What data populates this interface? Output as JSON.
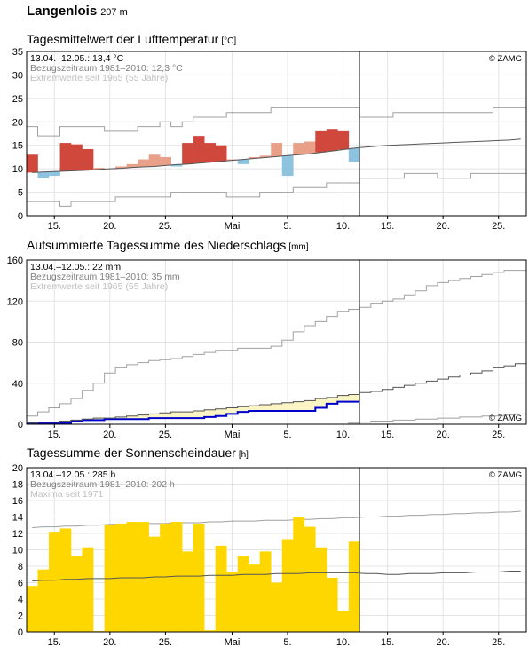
{
  "station": {
    "name": "Langenlois",
    "altitude": "207 m"
  },
  "colors": {
    "temp_warm": "#e8a089",
    "temp_warm_strong": "#d0483c",
    "temp_cold": "#8ec3df",
    "temp_cold_strong": "#3a86c4",
    "precip_deficit_fill": "#fbf5c6",
    "precip_actual": "#0000cc",
    "sunshine": "#ffd700",
    "envelope": "#a0a0a0",
    "mean_line": "#555555",
    "today_line": "#666666"
  },
  "x_axis": {
    "tick_labels": [
      "15.",
      "20.",
      "25.",
      "Mai",
      "5.",
      "10.",
      "15.",
      "20.",
      "25."
    ],
    "tick_days": [
      2,
      7,
      12,
      18,
      23,
      28,
      32,
      37,
      42
    ],
    "day_count": 45,
    "today_index": 29
  },
  "chart_data": [
    {
      "type": "bar",
      "title": "Tagesmittelwert der Lufttemperatur",
      "unit": "[°C]",
      "ylim": [
        0,
        35
      ],
      "yticks": [
        "0",
        "5",
        "10",
        "15",
        "20",
        "25",
        "30",
        "35"
      ],
      "info": [
        "13.04.–12.05.: 13,4 °C",
        "Bezugszeitraum 1981–2010: 12,3 °C",
        "Extremwerte seit 1965 (55 Jahre)"
      ],
      "credit": "© ZAMG",
      "reference_mean": [
        9.2,
        9.3,
        9.4,
        9.5,
        9.6,
        9.7,
        9.9,
        10.0,
        10.1,
        10.3,
        10.4,
        10.5,
        10.7,
        10.9,
        11.0,
        11.2,
        11.4,
        11.6,
        11.8,
        12.0,
        12.2,
        12.4,
        12.6,
        12.8,
        13.0,
        13.2,
        13.5,
        13.8,
        14.1,
        14.4,
        14.6,
        14.8,
        15.0,
        15.1,
        15.2,
        15.3,
        15.4,
        15.5,
        15.6,
        15.7,
        15.8,
        15.9,
        16.0,
        16.1,
        16.3
      ],
      "series": [
        {
          "values": [
            13.0,
            8.0,
            8.5,
            15.5,
            15.2,
            14.2,
            10.2,
            10.0,
            10.5,
            11.0,
            12.0,
            13.0,
            12.5,
            10.5,
            15.5,
            17.0,
            15.5,
            15.0,
            12.0,
            11.0,
            12.5,
            12.8,
            15.5,
            8.5,
            15.5,
            15.8,
            18.0,
            18.5,
            18.0,
            11.5
          ]
        }
      ],
      "extreme_max": [
        19,
        17,
        17,
        19,
        19,
        19,
        19,
        18,
        18,
        18,
        19,
        19,
        20,
        19,
        20,
        21,
        21,
        21,
        22,
        22,
        22,
        22,
        23,
        23,
        23,
        23,
        23,
        23,
        23,
        23,
        21,
        21,
        21,
        22,
        22,
        22,
        22,
        22,
        22,
        22,
        22,
        22,
        23,
        23,
        23
      ],
      "extreme_min": [
        3,
        3,
        3,
        2,
        3,
        3,
        3,
        3,
        4,
        4,
        4,
        4,
        4,
        5,
        5,
        5,
        5,
        5,
        4,
        4,
        4,
        5,
        5,
        5,
        6,
        6,
        6,
        7,
        7,
        7,
        8,
        8,
        8,
        8,
        9,
        9,
        9,
        8,
        8,
        8,
        9,
        9,
        9,
        9,
        9
      ]
    },
    {
      "type": "area",
      "title": "Aufsummierte Tagessumme des Niederschlags",
      "unit": "[mm]",
      "ylim": [
        0,
        160
      ],
      "yticks": [
        "0",
        "40",
        "80",
        "120",
        "160"
      ],
      "info": [
        "13.04.–12.05.: 22 mm",
        "Bezugszeitraum 1981–2010: 35 mm",
        "Extremwerte seit 1965 (55 Jahre)"
      ],
      "credit": "© ZAMG",
      "reference_cumulative": [
        1,
        2,
        2,
        3,
        4,
        5,
        6,
        6,
        7,
        8,
        9,
        10,
        11,
        12,
        12,
        13,
        14,
        15,
        16,
        17,
        18,
        19,
        20,
        21,
        22,
        23,
        25,
        26,
        28,
        29,
        31,
        32,
        34,
        36,
        38,
        40,
        42,
        44,
        46,
        48,
        50,
        52,
        55,
        57,
        59
      ],
      "series": [
        {
          "name": "actual",
          "values": [
            1,
            1,
            1,
            1,
            3,
            4,
            4,
            5,
            5,
            5,
            5,
            6,
            6,
            6,
            6,
            6,
            7,
            8,
            10,
            12,
            13,
            13,
            13,
            13,
            13,
            13,
            16,
            20,
            22,
            22
          ]
        }
      ],
      "extreme_max": [
        8,
        12,
        16,
        20,
        25,
        33,
        40,
        50,
        55,
        58,
        60,
        62,
        63,
        64,
        66,
        68,
        70,
        72,
        72,
        74,
        74,
        74,
        76,
        82,
        90,
        96,
        100,
        105,
        110,
        112,
        114,
        118,
        120,
        122,
        126,
        130,
        135,
        138,
        140,
        142,
        144,
        146,
        148,
        150,
        150
      ],
      "extreme_min": [
        0,
        0,
        0,
        0,
        0,
        0,
        0,
        0,
        0,
        0,
        0,
        0,
        0,
        0,
        0,
        0,
        0,
        0,
        0,
        0,
        0,
        0,
        0,
        0,
        0,
        0,
        0,
        0,
        0,
        1,
        2,
        3,
        3,
        4,
        4,
        5,
        5,
        6,
        6,
        7,
        7,
        8,
        8,
        9,
        10
      ]
    },
    {
      "type": "bar",
      "title": "Tagessumme der Sonnenscheindauer",
      "unit": "[h]",
      "ylim": [
        0,
        20
      ],
      "yticks": [
        "0",
        "2",
        "4",
        "6",
        "8",
        "10",
        "12",
        "14",
        "16",
        "18",
        "20"
      ],
      "info": [
        "13.04.–12.05.: 285 h",
        "Bezugszeitraum 1981–2010: 202 h",
        "Maxima seit 1971"
      ],
      "credit": "© ZAMG",
      "reference_mean": [
        6.2,
        6.3,
        6.3,
        6.4,
        6.4,
        6.5,
        6.5,
        6.5,
        6.6,
        6.6,
        6.6,
        6.7,
        6.7,
        6.8,
        6.8,
        6.8,
        6.9,
        6.9,
        6.9,
        7.0,
        7.0,
        7.0,
        7.1,
        7.1,
        7.1,
        7.2,
        7.2,
        7.2,
        7.2,
        7.2,
        7.1,
        7.1,
        7.0,
        7.0,
        7.1,
        7.1,
        7.1,
        7.2,
        7.2,
        7.2,
        7.3,
        7.3,
        7.3,
        7.4,
        7.4
      ],
      "series": [
        {
          "values": [
            5.6,
            7.6,
            12.2,
            12.6,
            9.2,
            10.3,
            0.1,
            13.0,
            13.2,
            13.4,
            13.4,
            11.6,
            13.2,
            13.4,
            9.8,
            13.2,
            0.2,
            10.5,
            7.3,
            9.2,
            8.2,
            9.8,
            6.0,
            11.3,
            14.0,
            12.8,
            10.3,
            6.6,
            2.6,
            11.0
          ]
        }
      ],
      "maxima": [
        12.7,
        12.8,
        12.8,
        12.9,
        12.9,
        13.0,
        13.0,
        13.1,
        13.1,
        13.1,
        13.2,
        13.2,
        13.2,
        13.3,
        13.3,
        13.3,
        13.4,
        13.4,
        13.5,
        13.5,
        13.5,
        13.6,
        13.6,
        13.6,
        13.7,
        13.7,
        13.8,
        13.8,
        13.9,
        13.9,
        14.0,
        14.0,
        14.1,
        14.1,
        14.2,
        14.2,
        14.3,
        14.3,
        14.4,
        14.4,
        14.5,
        14.5,
        14.6,
        14.6,
        14.7
      ]
    }
  ]
}
